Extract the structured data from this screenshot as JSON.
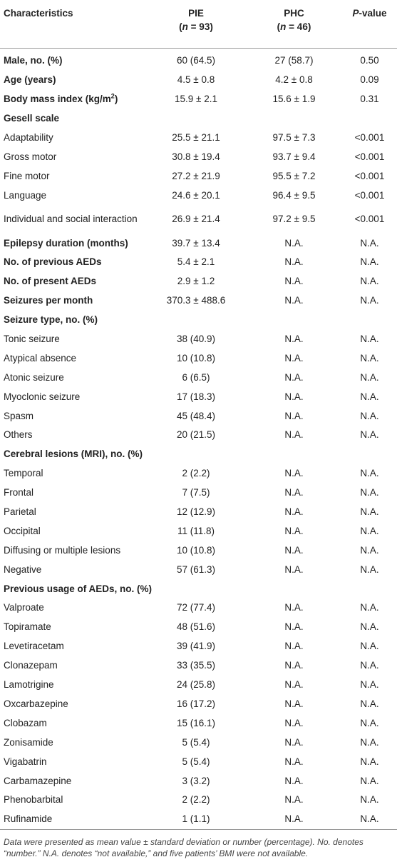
{
  "table": {
    "header": [
      [
        "Characteristics"
      ],
      [
        "PIE",
        "(",
        "n",
        " = 93)"
      ],
      [
        "PHC",
        "(",
        "n",
        " = 46)"
      ],
      [
        "P",
        "-value"
      ]
    ],
    "rows": [
      {
        "label": [
          "Male, no. (%)"
        ],
        "bold": true,
        "cells": [
          "60 (64.5)",
          "27 (58.7)",
          "0.50"
        ]
      },
      {
        "label": [
          "Age (years)"
        ],
        "bold": true,
        "cells": [
          "4.5 ± 0.8",
          "4.2 ± 0.8",
          "0.09"
        ]
      },
      {
        "label": [
          "Body mass index (kg/m",
          "2",
          ")"
        ],
        "bold": true,
        "cells": [
          "15.9 ± 2.1",
          "15.6 ± 1.9",
          "0.31"
        ]
      },
      {
        "label": [
          "Gesell scale"
        ],
        "bold": true
      },
      {
        "label": [
          "Adaptability"
        ],
        "cells": [
          "25.5 ± 21.1",
          "97.5 ± 7.3",
          "<0.001"
        ]
      },
      {
        "label": [
          "Gross motor"
        ],
        "cells": [
          "30.8 ± 19.4",
          "93.7 ± 9.4",
          "<0.001"
        ]
      },
      {
        "label": [
          "Fine motor"
        ],
        "cells": [
          "27.2 ± 21.9",
          "95.5 ± 7.2",
          "<0.001"
        ]
      },
      {
        "label": [
          "Language"
        ],
        "cells": [
          "24.6 ± 20.1",
          "96.4 ± 9.5",
          "<0.001"
        ]
      },
      {
        "label": [
          "Individual and social interaction"
        ],
        "cells": [
          "26.9 ± 21.4",
          "97.2 ± 9.5",
          "<0.001"
        ]
      },
      {
        "label": [
          "Epilepsy duration (months)"
        ],
        "bold": true,
        "cells": [
          "39.7 ± 13.4",
          "N.A.",
          "N.A."
        ]
      },
      {
        "label": [
          "No. of previous AEDs"
        ],
        "bold": true,
        "cells": [
          "5.4 ± 2.1",
          "N.A.",
          "N.A."
        ]
      },
      {
        "label": [
          "No. of present AEDs"
        ],
        "bold": true,
        "cells": [
          "2.9 ± 1.2",
          "N.A.",
          "N.A."
        ]
      },
      {
        "label": [
          "Seizures per month"
        ],
        "bold": true,
        "cells": [
          "370.3 ± 488.6",
          "N.A.",
          "N.A."
        ]
      },
      {
        "label": [
          "Seizure type, no. (%)"
        ],
        "bold": true
      },
      {
        "label": [
          "Tonic seizure"
        ],
        "cells": [
          "38 (40.9)",
          "N.A.",
          "N.A."
        ]
      },
      {
        "label": [
          "Atypical absence"
        ],
        "cells": [
          "10 (10.8)",
          "N.A.",
          "N.A."
        ]
      },
      {
        "label": [
          "Atonic seizure"
        ],
        "cells": [
          "6 (6.5)",
          "N.A.",
          "N.A."
        ]
      },
      {
        "label": [
          "Myoclonic seizure"
        ],
        "cells": [
          "17 (18.3)",
          "N.A.",
          "N.A."
        ]
      },
      {
        "label": [
          "Spasm"
        ],
        "cells": [
          "45 (48.4)",
          "N.A.",
          "N.A."
        ]
      },
      {
        "label": [
          "Others"
        ],
        "cells": [
          "20 (21.5)",
          "N.A.",
          "N.A."
        ]
      },
      {
        "label": [
          "Cerebral lesions (MRI), no. (%)"
        ],
        "bold": true
      },
      {
        "label": [
          "Temporal"
        ],
        "cells": [
          "2 (2.2)",
          "N.A.",
          "N.A."
        ]
      },
      {
        "label": [
          "Frontal"
        ],
        "cells": [
          "7 (7.5)",
          "N.A.",
          "N.A."
        ]
      },
      {
        "label": [
          "Parietal"
        ],
        "cells": [
          "12 (12.9)",
          "N.A.",
          "N.A."
        ]
      },
      {
        "label": [
          "Occipital"
        ],
        "cells": [
          "11 (11.8)",
          "N.A.",
          "N.A."
        ]
      },
      {
        "label": [
          "Diffusing or multiple lesions"
        ],
        "cells": [
          "10 (10.8)",
          "N.A.",
          "N.A."
        ]
      },
      {
        "label": [
          "Negative"
        ],
        "cells": [
          "57 (61.3)",
          "N.A.",
          "N.A."
        ]
      },
      {
        "label": [
          "Previous usage of AEDs, no. (%)"
        ],
        "bold": true
      },
      {
        "label": [
          "Valproate"
        ],
        "cells": [
          "72 (77.4)",
          "N.A.",
          "N.A."
        ]
      },
      {
        "label": [
          "Topiramate"
        ],
        "cells": [
          "48 (51.6)",
          "N.A.",
          "N.A."
        ]
      },
      {
        "label": [
          "Levetiracetam"
        ],
        "cells": [
          "39 (41.9)",
          "N.A.",
          "N.A."
        ]
      },
      {
        "label": [
          "Clonazepam"
        ],
        "cells": [
          "33 (35.5)",
          "N.A.",
          "N.A."
        ]
      },
      {
        "label": [
          "Lamotrigine"
        ],
        "cells": [
          "24 (25.8)",
          "N.A.",
          "N.A."
        ]
      },
      {
        "label": [
          "Oxcarbazepine"
        ],
        "cells": [
          "16 (17.2)",
          "N.A.",
          "N.A."
        ]
      },
      {
        "label": [
          "Clobazam"
        ],
        "cells": [
          "15 (16.1)",
          "N.A.",
          "N.A."
        ]
      },
      {
        "label": [
          "Zonisamide"
        ],
        "cells": [
          "5 (5.4)",
          "N.A.",
          "N.A."
        ]
      },
      {
        "label": [
          "Vigabatrin"
        ],
        "cells": [
          "5 (5.4)",
          "N.A.",
          "N.A."
        ]
      },
      {
        "label": [
          "Carbamazepine"
        ],
        "cells": [
          "3 (3.2)",
          "N.A.",
          "N.A."
        ]
      },
      {
        "label": [
          "Phenobarbital"
        ],
        "cells": [
          "2 (2.2)",
          "N.A.",
          "N.A."
        ]
      },
      {
        "label": [
          "Rufinamide"
        ],
        "cells": [
          "1 (1.1)",
          "N.A.",
          "N.A."
        ]
      }
    ],
    "footnote": "Data were presented as mean value ± standard deviation or number (percentage). No. denotes “number.” N.A. denotes “not available,” and five patients’ BMI were not available."
  }
}
